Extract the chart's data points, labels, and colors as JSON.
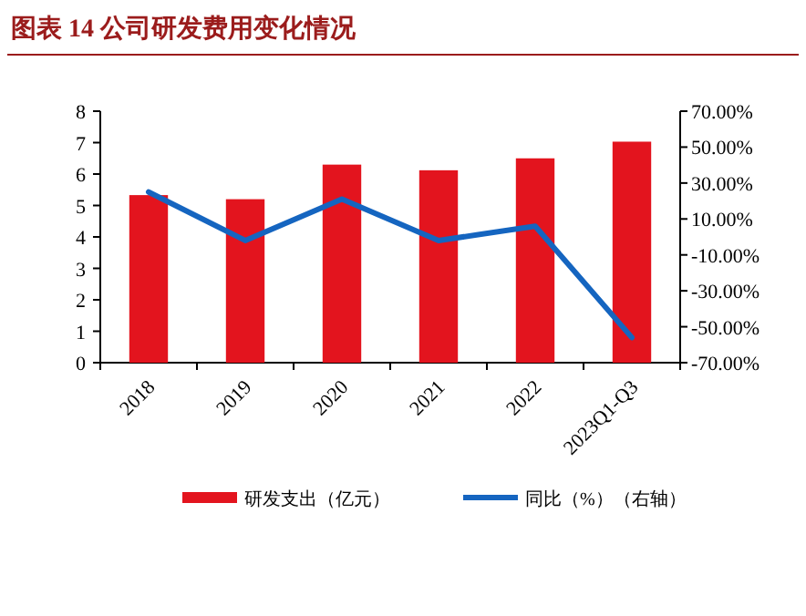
{
  "chart_data": {
    "type": "bar",
    "title": "图表 14   公司研发费用变化情况",
    "categories": [
      "2018",
      "2019",
      "2020",
      "2021",
      "2022",
      "2023Q1-Q3"
    ],
    "series": [
      {
        "name": "研发支出（亿元）",
        "color": "#e3141e",
        "values": [
          5.33,
          5.2,
          6.3,
          6.12,
          6.5,
          7.03
        ]
      },
      {
        "name": "同比（%）（右轴）",
        "type": "line",
        "axis": "y2",
        "color": "#1565c0",
        "values": [
          25,
          -2,
          21,
          -2,
          6,
          -56
        ]
      }
    ],
    "ylim": [
      0,
      8
    ],
    "yticks": [
      0,
      1,
      2,
      3,
      4,
      5,
      6,
      7,
      8
    ],
    "y2lim": [
      -70,
      70
    ],
    "y2ticks": [
      {
        "value": 70,
        "label": "70.00%"
      },
      {
        "value": 50,
        "label": "50.00%"
      },
      {
        "value": 30,
        "label": "30.00%"
      },
      {
        "value": 10,
        "label": "10.00%"
      },
      {
        "value": -10,
        "label": "-10.00%"
      },
      {
        "value": -30,
        "label": "-30.00%"
      },
      {
        "value": -50,
        "label": "-50.00%"
      },
      {
        "value": -70,
        "label": "-70.00%"
      }
    ],
    "legend": "bottom"
  }
}
